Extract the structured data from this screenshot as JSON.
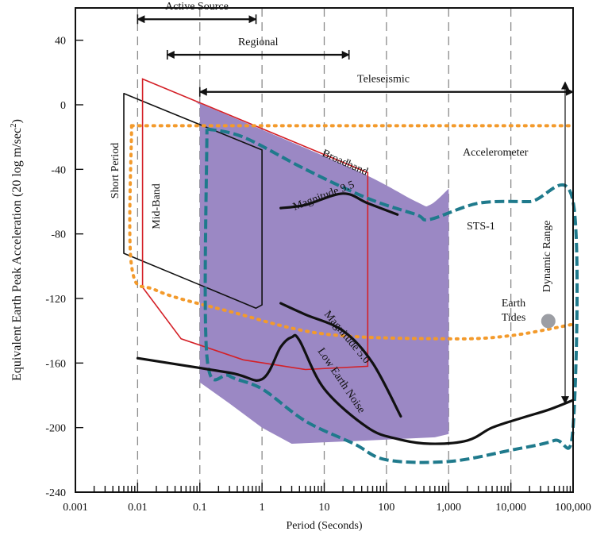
{
  "chart_data": {
    "type": "line",
    "title": "",
    "xlabel": "Period (Seconds)",
    "ylabel_main": "Equivalent Earth Peak Acceleration (20 log m/sec",
    "ylabel_sup": "2",
    "ylabel_end": ")",
    "xscale": "log",
    "xlim": [
      0.001,
      100000
    ],
    "ylim": [
      -240,
      60
    ],
    "x_tick_labels": [
      "0.001",
      "0.01",
      "0.1",
      "1",
      "10",
      "100",
      "1,000",
      "10,000",
      "100,000"
    ],
    "x_ticks": [
      0.001,
      0.01,
      0.1,
      1,
      10,
      100,
      1000,
      10000,
      100000
    ],
    "y_ticks": [
      -240,
      -200,
      -160,
      -120,
      -80,
      -40,
      0,
      40
    ],
    "y_tick_labels": [
      "-240",
      "-200",
      "-160",
      "-120",
      "-80",
      "-40",
      "0",
      "40"
    ],
    "grid": "vertical dashed at decades",
    "colors": {
      "broadband": "#9b88c4",
      "broadband_text": "#5a2d91",
      "accelerometer": "#f39a2b",
      "sts1": "#1f7a8c",
      "midband": "#d42027",
      "black": "#111111",
      "earth_tides": "#9c9ea4"
    },
    "ranges": [
      {
        "label": "Active Source",
        "x": [
          0.01,
          0.8
        ],
        "y": 53
      },
      {
        "label": "Regional",
        "x": [
          0.03,
          25
        ],
        "y": 31
      },
      {
        "label": "Teleseismic",
        "x": [
          0.1,
          100000
        ],
        "y": 8
      }
    ],
    "series": [
      {
        "name": "Broadband",
        "points": [
          [
            0.1,
            0
          ],
          [
            0.15,
            -2
          ],
          [
            30,
            -40
          ],
          [
            300,
            -60
          ],
          [
            500,
            -62
          ],
          [
            1000,
            -52
          ],
          [
            1000,
            -204
          ],
          [
            600,
            -206
          ],
          [
            50,
            -208
          ],
          [
            3,
            -210
          ],
          [
            1,
            -200
          ],
          [
            0.3,
            -185
          ],
          [
            0.1,
            -172
          ]
        ]
      },
      {
        "name": "Mid-Band",
        "points": [
          [
            0.012,
            16
          ],
          [
            50,
            -42
          ],
          [
            50,
            -162
          ],
          [
            5,
            -164
          ],
          [
            0.5,
            -158
          ],
          [
            0.05,
            -145
          ],
          [
            0.012,
            -113
          ],
          [
            0.012,
            16
          ]
        ]
      },
      {
        "name": "Short Period",
        "points": [
          [
            0.006,
            7
          ],
          [
            1,
            -28
          ],
          [
            1,
            -124
          ],
          [
            0.8,
            -126
          ],
          [
            0.006,
            -92
          ],
          [
            0.006,
            7
          ]
        ]
      },
      {
        "name": "Accelerometer",
        "points": [
          [
            0.008,
            -13
          ],
          [
            100000,
            -13
          ]
        ]
      },
      {
        "name": "Accelerometer-lower",
        "points": [
          [
            0.008,
            -13
          ],
          [
            0.008,
            -100
          ],
          [
            0.02,
            -115
          ],
          [
            0.3,
            -128
          ],
          [
            10,
            -142
          ],
          [
            1000,
            -145
          ],
          [
            10000,
            -143
          ],
          [
            100000,
            -136
          ]
        ]
      },
      {
        "name": "STS-1",
        "points": [
          [
            0.13,
            -15
          ],
          [
            0.5,
            -20
          ],
          [
            5,
            -40
          ],
          [
            50,
            -58
          ],
          [
            300,
            -68
          ],
          [
            500,
            -71
          ],
          [
            3000,
            -61
          ],
          [
            20000,
            -60
          ],
          [
            100000,
            -60
          ],
          [
            100000,
            -200
          ],
          [
            50000,
            -208
          ],
          [
            10000,
            -214
          ],
          [
            1000,
            -221
          ],
          [
            100,
            -220
          ],
          [
            30,
            -210
          ],
          [
            5,
            -196
          ],
          [
            1,
            -176
          ],
          [
            0.3,
            -168
          ],
          [
            0.13,
            -156
          ],
          [
            0.13,
            -15
          ]
        ]
      },
      {
        "name": "Magnitude 9.5",
        "points": [
          [
            2,
            -64
          ],
          [
            5,
            -62
          ],
          [
            20,
            -55
          ],
          [
            50,
            -61
          ],
          [
            150,
            -68
          ]
        ]
      },
      {
        "name": "Magnitude 5.0",
        "points": [
          [
            2,
            -123
          ],
          [
            5,
            -130
          ],
          [
            20,
            -140
          ],
          [
            60,
            -160
          ],
          [
            170,
            -193
          ]
        ]
      },
      {
        "name": "Low Earth Noise",
        "points": [
          [
            0.01,
            -157
          ],
          [
            0.3,
            -166
          ],
          [
            1,
            -170
          ],
          [
            2,
            -150
          ],
          [
            3,
            -144
          ],
          [
            4,
            -146
          ],
          [
            10,
            -176
          ],
          [
            50,
            -200
          ],
          [
            150,
            -207
          ],
          [
            500,
            -210
          ],
          [
            2000,
            -208
          ],
          [
            5000,
            -200
          ],
          [
            15000,
            -194
          ],
          [
            40000,
            -189
          ],
          [
            100000,
            -183
          ]
        ]
      }
    ],
    "labels": {
      "active_source": "Active Source",
      "regional": "Regional",
      "teleseismic": "Teleseismic",
      "accelerometer": "Accelerometer",
      "broadband": "Broadband",
      "sts1": "STS-1",
      "short_period": "Short Period",
      "mid_band": "Mid-Band",
      "mag95": "Magnitude 9.5",
      "mag50": "Magnitude 5.0",
      "low_noise": "Low Earth Noise",
      "earth_tides_1": "Earth",
      "earth_tides_2": "Tides",
      "dynamic_range": "Dynamic Range"
    },
    "earth_tides_point": [
      40000,
      -134
    ],
    "dynamic_range": {
      "x": 100000,
      "y": [
        -185,
        14
      ]
    }
  }
}
